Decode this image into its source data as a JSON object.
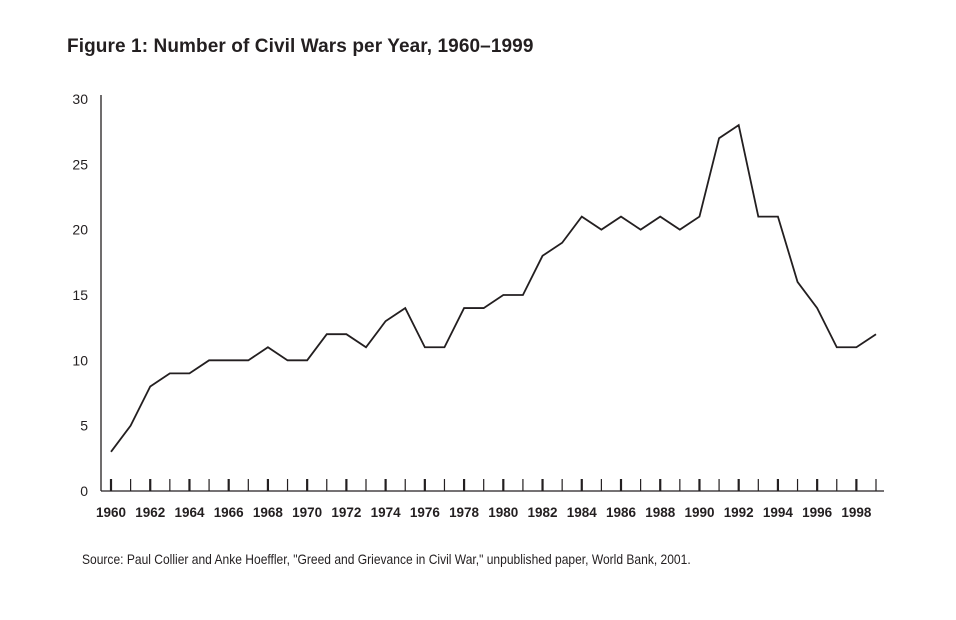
{
  "chart_data": {
    "type": "line",
    "title": "Figure 1: Number of Civil Wars per Year, 1960–1999",
    "xlabel": "",
    "ylabel": "",
    "x": [
      1960,
      1961,
      1962,
      1963,
      1964,
      1965,
      1966,
      1967,
      1968,
      1969,
      1970,
      1971,
      1972,
      1973,
      1974,
      1975,
      1976,
      1977,
      1978,
      1979,
      1980,
      1981,
      1982,
      1983,
      1984,
      1985,
      1986,
      1987,
      1988,
      1989,
      1990,
      1991,
      1992,
      1993,
      1994,
      1995,
      1996,
      1997,
      1998,
      1999
    ],
    "series": [
      {
        "name": "Civil wars",
        "values": [
          3,
          5,
          8,
          9,
          9,
          10,
          10,
          10,
          11,
          10,
          10,
          12,
          12,
          11,
          13,
          14,
          11,
          11,
          14,
          14,
          15,
          15,
          18,
          19,
          21,
          20,
          21,
          20,
          21,
          20,
          21,
          27,
          28,
          21,
          21,
          16,
          14,
          11,
          11,
          12
        ]
      }
    ],
    "ylim": [
      0,
      30
    ],
    "yticks": [
      0,
      5,
      10,
      15,
      20,
      25,
      30
    ],
    "xtick_labels": [
      "1960",
      "1962",
      "1964",
      "1966",
      "1968",
      "1970",
      "1972",
      "1974",
      "1976",
      "1978",
      "1980",
      "1982",
      "1984",
      "1986",
      "1988",
      "1990",
      "1992",
      "1994",
      "1996",
      "1998"
    ],
    "grid": false,
    "legend": "none",
    "source": "Source: Paul Collier and Anke Hoeffler, \"Greed and Grievance in Civil War,\" unpublished paper, World Bank, 2001."
  }
}
